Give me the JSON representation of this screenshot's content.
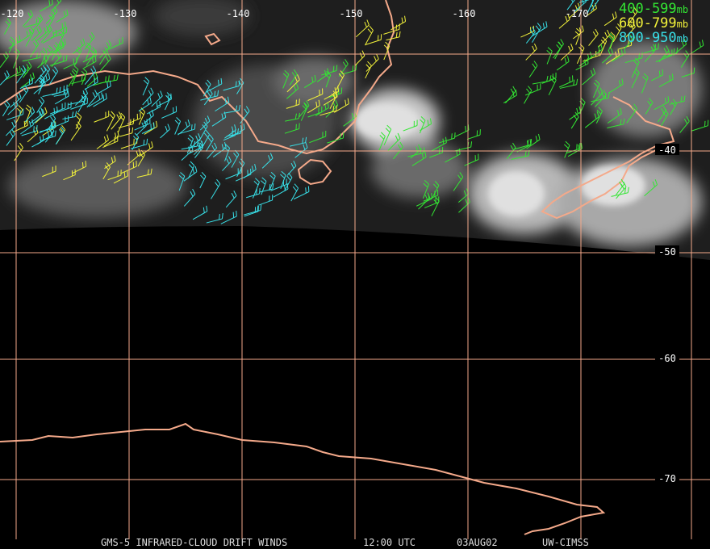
{
  "grid": {
    "longitudes": [
      "-120",
      "-130",
      "-140",
      "-150",
      "-160",
      "-170"
    ],
    "latitudes": [
      "-40",
      "-50",
      "-60",
      "-70"
    ],
    "color": "#f4a98a"
  },
  "legend": [
    {
      "label": "400-599",
      "unit": "mb",
      "color": "#33e633"
    },
    {
      "label": "600-799",
      "unit": "mb",
      "color": "#f2f23a"
    },
    {
      "label": "800-950",
      "unit": "mb",
      "color": "#38e0e8"
    }
  ],
  "footer": [
    "GMS-5 INFRARED-CLOUD DRIFT WINDS",
    "12:00 UTC",
    "03AUG02",
    "UW-CIMSS"
  ]
}
